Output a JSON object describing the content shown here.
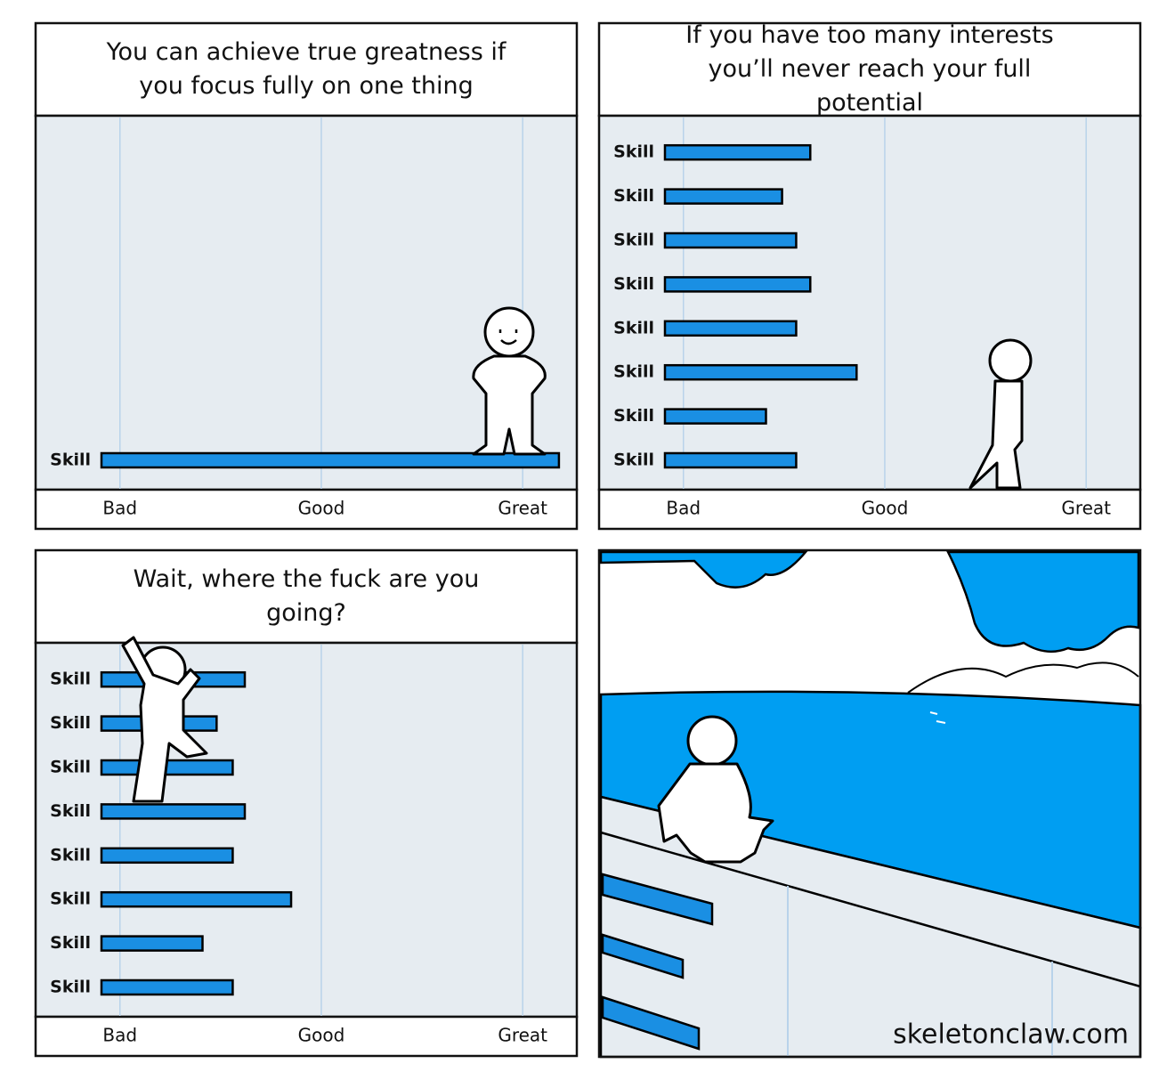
{
  "chart_data": [
    {
      "type": "bar",
      "orientation": "horizontal",
      "title": "You can achieve true greatness if you focus fully on one thing",
      "categories": [
        "Skill"
      ],
      "values": [
        2.18
      ],
      "color": "#1a8fe3",
      "xlim": [
        -0.41,
        2.26
      ],
      "xticks": [
        {
          "value": 0,
          "label": "Bad"
        },
        {
          "value": 1,
          "label": "Good"
        },
        {
          "value": 2,
          "label": "Great"
        }
      ],
      "grid": true
    },
    {
      "type": "bar",
      "orientation": "horizontal",
      "title": "If you have too many interests you’ll never reach your full potential",
      "categories": [
        "Skill",
        "Skill",
        "Skill",
        "Skill",
        "Skill",
        "Skill",
        "Skill",
        "Skill"
      ],
      "values": [
        0.63,
        0.49,
        0.56,
        0.63,
        0.56,
        0.86,
        0.41,
        0.56
      ],
      "color": "#1a8fe3",
      "xlim": [
        -0.41,
        2.26
      ],
      "xticks": [
        {
          "value": 0,
          "label": "Bad"
        },
        {
          "value": 1,
          "label": "Good"
        },
        {
          "value": 2,
          "label": "Great"
        }
      ],
      "grid": true
    },
    {
      "type": "bar",
      "orientation": "horizontal",
      "title": "Wait, where the fuck are you going?",
      "categories": [
        "Skill",
        "Skill",
        "Skill",
        "Skill",
        "Skill",
        "Skill",
        "Skill",
        "Skill"
      ],
      "values": [
        0.62,
        0.48,
        0.56,
        0.62,
        0.56,
        0.85,
        0.41,
        0.56
      ],
      "color": "#1a8fe3",
      "xlim": [
        -0.41,
        2.26
      ],
      "xticks": [
        {
          "value": 0,
          "label": "Bad"
        },
        {
          "value": 1,
          "label": "Good"
        },
        {
          "value": 2,
          "label": "Great"
        }
      ],
      "grid": true
    }
  ],
  "credit": "skeletonclaw.com"
}
